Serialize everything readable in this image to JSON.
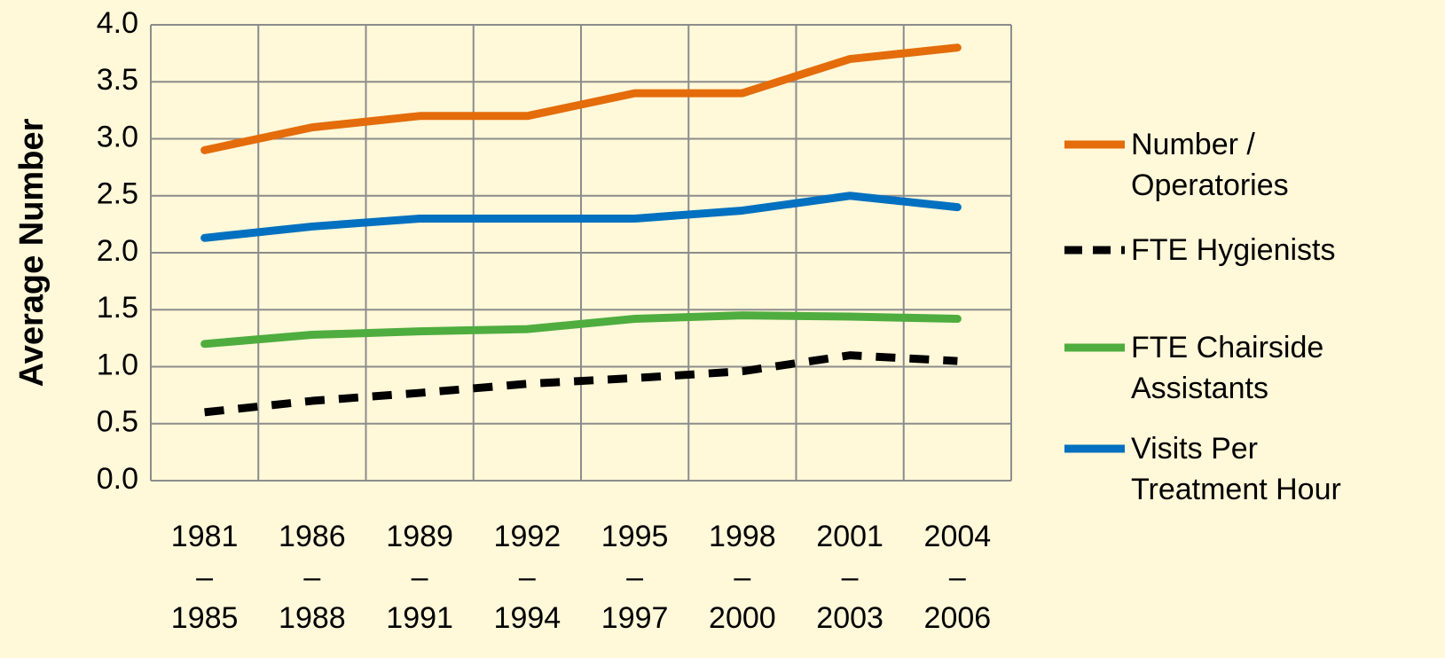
{
  "chart_data": {
    "type": "line",
    "y_label": "Average Number",
    "categories": [
      "1981\n–\n1985",
      "1986\n–\n1988",
      "1989\n–\n1991",
      "1992\n–\n1994",
      "1995\n–\n1997",
      "1998\n–\n2000",
      "2001\n–\n2003",
      "2004\n–\n2006"
    ],
    "series": [
      {
        "name": "Number /\nOperatories",
        "color": "#e46c0a",
        "style": "solid",
        "values": [
          2.9,
          3.1,
          3.2,
          3.2,
          3.4,
          3.4,
          3.7,
          3.8
        ]
      },
      {
        "name": "FTE Hygienists",
        "color": "#000000",
        "style": "dashed",
        "values": [
          0.6,
          0.7,
          0.77,
          0.85,
          0.9,
          0.96,
          1.1,
          1.05
        ]
      },
      {
        "name": " FTE Chairside\nAssistants",
        "color": "#4ead3e",
        "style": "solid",
        "values": [
          1.2,
          1.28,
          1.31,
          1.33,
          1.42,
          1.45,
          1.44,
          1.42
        ]
      },
      {
        "name": "Visits Per\nTreatment Hour",
        "color": "#0070c0",
        "style": "solid",
        "values": [
          2.13,
          2.23,
          2.3,
          2.3,
          2.3,
          2.37,
          2.5,
          2.4
        ]
      }
    ],
    "ylim": [
      0,
      4
    ],
    "yticks": [
      {
        "value": 0,
        "label": "0.0"
      },
      0.5,
      {
        "value": 1,
        "label": "1.0"
      },
      1.5,
      {
        "value": 2,
        "label": "2.0"
      },
      2.5,
      {
        "value": 3,
        "label": "3.0"
      },
      3.5,
      {
        "value": 4,
        "label": "4.0"
      }
    ],
    "grid": true,
    "legend": "right"
  }
}
